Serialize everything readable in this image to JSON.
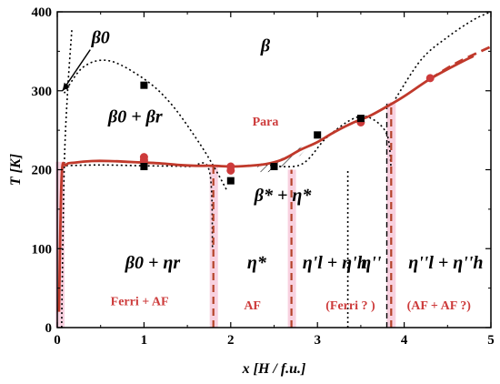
{
  "chart_data": {
    "type": "scatter",
    "title": "",
    "xlabel": "x [H / f.u.]",
    "ylabel": "T [K]",
    "xlim": [
      0,
      5
    ],
    "ylim": [
      0,
      400
    ],
    "xticks": [
      0,
      1,
      2,
      3,
      4,
      5
    ],
    "yticks": [
      0,
      100,
      200,
      300,
      400
    ],
    "grid": false,
    "legend": "none",
    "colors": {
      "curve": "#c0392b",
      "points_red": "#cd3b3b",
      "points_black": "#000000",
      "boundary": "#000000",
      "dashed": "#b5432a",
      "band": "#f6c5d8"
    },
    "series": [
      {
        "style": "solid-red-curve",
        "x": [
          0.02,
          0.05,
          0.1,
          0.2,
          0.4,
          0.6,
          0.8,
          1.0,
          1.2,
          1.4,
          1.6,
          1.8,
          2.0,
          2.2,
          2.4,
          2.6,
          2.8,
          3.0,
          3.2,
          3.4,
          3.6,
          3.8,
          4.0,
          4.3,
          4.6,
          4.8
        ],
        "y": [
          20,
          190,
          206,
          209,
          211,
          211,
          210,
          209,
          208,
          206,
          205,
          205,
          204,
          205,
          207,
          213,
          225,
          235,
          248,
          259,
          268,
          280,
          293,
          315,
          333,
          344
        ]
      },
      {
        "style": "dashed-red-extension",
        "x": [
          4.3,
          4.6,
          5.0
        ],
        "y": [
          315,
          335,
          356
        ]
      },
      {
        "style": "red-points",
        "x": [
          1.0,
          1.0,
          2.0,
          2.0,
          3.5,
          4.3
        ],
        "y": [
          216,
          212,
          204,
          199,
          260,
          316
        ]
      },
      {
        "style": "black-square-points",
        "x": [
          1.0,
          1.0,
          2.0,
          2.5,
          3.0,
          3.5
        ],
        "y": [
          307,
          204,
          186,
          204,
          244,
          265
        ]
      }
    ],
    "boundaries": [
      {
        "style": "dotted",
        "x": [
          0.05,
          0.08,
          0.12,
          0.17
        ],
        "y": [
          0,
          200,
          300,
          380
        ]
      },
      {
        "style": "dotted",
        "x": [
          0.08,
          0.3,
          0.6,
          1.0,
          1.3,
          1.6,
          1.8,
          1.95
        ],
        "y": [
          297,
          330,
          338,
          315,
          285,
          240,
          205,
          175
        ]
      },
      {
        "style": "dotted",
        "x": [
          0.05,
          0.5,
          1.0,
          1.5,
          1.75,
          1.79
        ],
        "y": [
          205,
          206,
          205,
          204,
          200,
          100
        ]
      },
      {
        "style": "dotted",
        "x": [
          2.35,
          2.8,
          3.1,
          3.4,
          3.6,
          3.8,
          3.85
        ],
        "y": [
          207,
          206,
          240,
          264,
          266,
          245,
          200
        ]
      },
      {
        "style": "dotted",
        "x": [
          3.35,
          3.35
        ],
        "y": [
          0,
          200
        ]
      },
      {
        "style": "dotted",
        "x": [
          3.9,
          4.2,
          4.5,
          4.8,
          5.0
        ],
        "y": [
          290,
          340,
          368,
          390,
          400
        ]
      },
      {
        "style": "dashed-red",
        "x": [
          1.8,
          1.8
        ],
        "y": [
          0,
          205
        ]
      },
      {
        "style": "dashed-red",
        "x": [
          2.7,
          2.7
        ],
        "y": [
          0,
          200
        ]
      },
      {
        "style": "dashed-red",
        "x": [
          3.85,
          3.85
        ],
        "y": [
          0,
          285
        ]
      },
      {
        "style": "dashed-black",
        "x": [
          3.8,
          3.8
        ],
        "y": [
          0,
          285
        ]
      }
    ],
    "annotations": [
      {
        "text": "β0",
        "x": 0.5,
        "y": 360,
        "kind": "phase"
      },
      {
        "text": "β",
        "x": 2.4,
        "y": 350,
        "kind": "phase"
      },
      {
        "text": "β0 + βr",
        "x": 0.9,
        "y": 260,
        "kind": "phase"
      },
      {
        "text": "Para",
        "x": 2.4,
        "y": 256,
        "kind": "magnetic"
      },
      {
        "text": "β* + η*",
        "x": 2.6,
        "y": 160,
        "kind": "phase"
      },
      {
        "text": "β0 + ηr",
        "x": 1.1,
        "y": 75,
        "kind": "phase"
      },
      {
        "text": "η*",
        "x": 2.3,
        "y": 75,
        "kind": "phase"
      },
      {
        "text": "η'l + η'h",
        "x": 3.2,
        "y": 75,
        "kind": "phase"
      },
      {
        "text": "η''",
        "x": 3.62,
        "y": 75,
        "kind": "phase"
      },
      {
        "text": "η''l + η''h",
        "x": 4.48,
        "y": 75,
        "kind": "phase"
      },
      {
        "text": "Ferri + AF",
        "x": 0.95,
        "y": 28,
        "kind": "magnetic"
      },
      {
        "text": "AF",
        "x": 2.25,
        "y": 23,
        "kind": "magnetic"
      },
      {
        "text": "(Ferri ? )",
        "x": 3.38,
        "y": 23,
        "kind": "magnetic"
      },
      {
        "text": "(AF + AF ?)",
        "x": 4.4,
        "y": 23,
        "kind": "magnetic"
      }
    ]
  }
}
